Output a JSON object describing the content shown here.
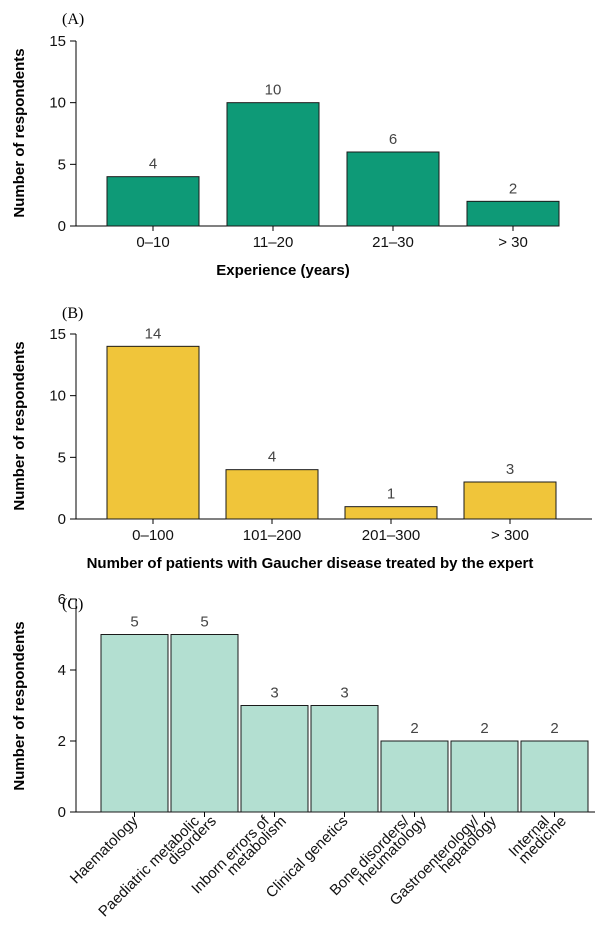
{
  "colors": {
    "panel_a": "#0e9a77",
    "panel_b": "#f0c53a",
    "panel_c": "#b3dfd1"
  },
  "chart_data": [
    {
      "type": "bar",
      "panel_label": "(A)",
      "categories": [
        "0–10",
        "11–20",
        "21–30",
        "> 30"
      ],
      "values": [
        4,
        10,
        6,
        2
      ],
      "xlabel": "Experience (years)",
      "ylabel": "Number of respondents",
      "ylim": [
        0,
        15
      ],
      "yticks": [
        0,
        5,
        10,
        15
      ],
      "grid": false
    },
    {
      "type": "bar",
      "panel_label": "(B)",
      "categories": [
        "0–100",
        "101–200",
        "201–300",
        "> 300"
      ],
      "values": [
        14,
        4,
        1,
        3
      ],
      "xlabel": "Number of patients with Gaucher disease treated by the expert",
      "ylabel": "Number of respondents",
      "ylim": [
        0,
        15
      ],
      "yticks": [
        0,
        5,
        10,
        15
      ],
      "grid": false
    },
    {
      "type": "bar",
      "panel_label": "(C)",
      "categories": [
        [
          "Haematology"
        ],
        [
          "Paediatric metabolic",
          "disorders"
        ],
        [
          "Inborn errors of",
          "metabolism"
        ],
        [
          "Clinical genetics"
        ],
        [
          "Bone disorders/",
          "rheumatology"
        ],
        [
          "Gastroenterology/",
          "hepatology"
        ],
        [
          "Internal",
          "medicine"
        ]
      ],
      "values": [
        5,
        5,
        3,
        3,
        2,
        2,
        2
      ],
      "xlabel": "",
      "ylabel": "Number of respondents",
      "ylim": [
        0,
        6
      ],
      "yticks": [
        0,
        2,
        4,
        6
      ],
      "grid": false
    }
  ]
}
